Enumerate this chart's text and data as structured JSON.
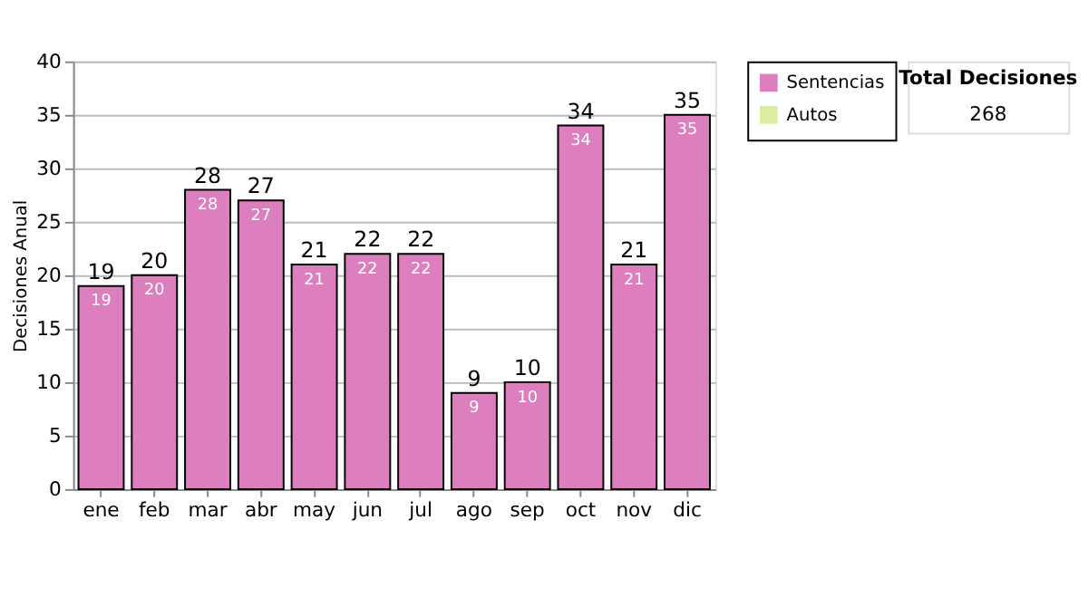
{
  "chart_data": {
    "type": "bar",
    "stacked": true,
    "ylabel": "Decisiones Anual",
    "categories": [
      "ene",
      "feb",
      "mar",
      "abr",
      "may",
      "jun",
      "jul",
      "ago",
      "sep",
      "oct",
      "nov",
      "dic"
    ],
    "series": [
      {
        "name": "Sentencias",
        "color": "#dd7fbf",
        "values": [
          19,
          20,
          28,
          27,
          21,
          22,
          22,
          9,
          10,
          34,
          21,
          35
        ],
        "value_labels": [
          "19",
          "20",
          "28",
          "27",
          "21",
          "22",
          "22",
          "9",
          "10",
          "34",
          "21",
          "35"
        ]
      },
      {
        "name": "Autos",
        "color": "#d9eea0",
        "values": [
          0,
          0,
          0,
          0,
          0,
          0,
          0,
          0,
          0,
          0,
          0,
          0
        ]
      }
    ],
    "totals": [
      "19",
      "20",
      "28",
      "27",
      "21",
      "22",
      "22",
      "9",
      "10",
      "34",
      "21",
      "35"
    ],
    "ylim": [
      0,
      40
    ],
    "yticks": [
      0,
      5,
      10,
      15,
      20,
      25,
      30,
      35,
      40
    ],
    "grid": "y",
    "legend": "right",
    "annotations": [
      "Total Decisiones",
      "268"
    ]
  }
}
